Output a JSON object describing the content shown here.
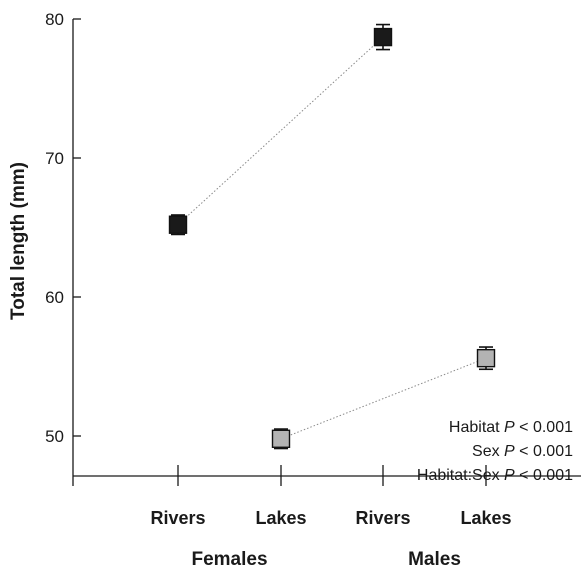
{
  "chart_data": {
    "type": "scatter",
    "ylabel": "Total length (mm)",
    "xlabel": "",
    "ylim": [
      45.5,
      80
    ],
    "yticks": [
      50,
      60,
      70,
      80
    ],
    "categories": [
      "Rivers",
      "Lakes",
      "Rivers",
      "Lakes"
    ],
    "groups": [
      {
        "label": "Females",
        "categories": [
          0,
          1
        ]
      },
      {
        "label": "Males",
        "categories": [
          2,
          3
        ]
      }
    ],
    "series": [
      {
        "color": "#1a1a1a",
        "points": [
          {
            "category": 0,
            "y": 65.2,
            "error": 0.7
          },
          {
            "category": 2,
            "y": 78.7,
            "error": 0.9
          }
        ]
      },
      {
        "color": "#b3b3b3",
        "points": [
          {
            "category": 1,
            "y": 49.8,
            "error": 0.7
          },
          {
            "category": 3,
            "y": 55.6,
            "error": 0.8
          }
        ]
      }
    ],
    "annotations": [
      {
        "prefix": "Habitat ",
        "italic": "P",
        "suffix": " < 0.001"
      },
      {
        "prefix": "Sex ",
        "italic": "P",
        "suffix": " < 0.001"
      },
      {
        "prefix": "Habitat:Sex ",
        "italic": "P",
        "suffix": " < 0.001"
      }
    ],
    "grid": false,
    "legend": "none"
  }
}
